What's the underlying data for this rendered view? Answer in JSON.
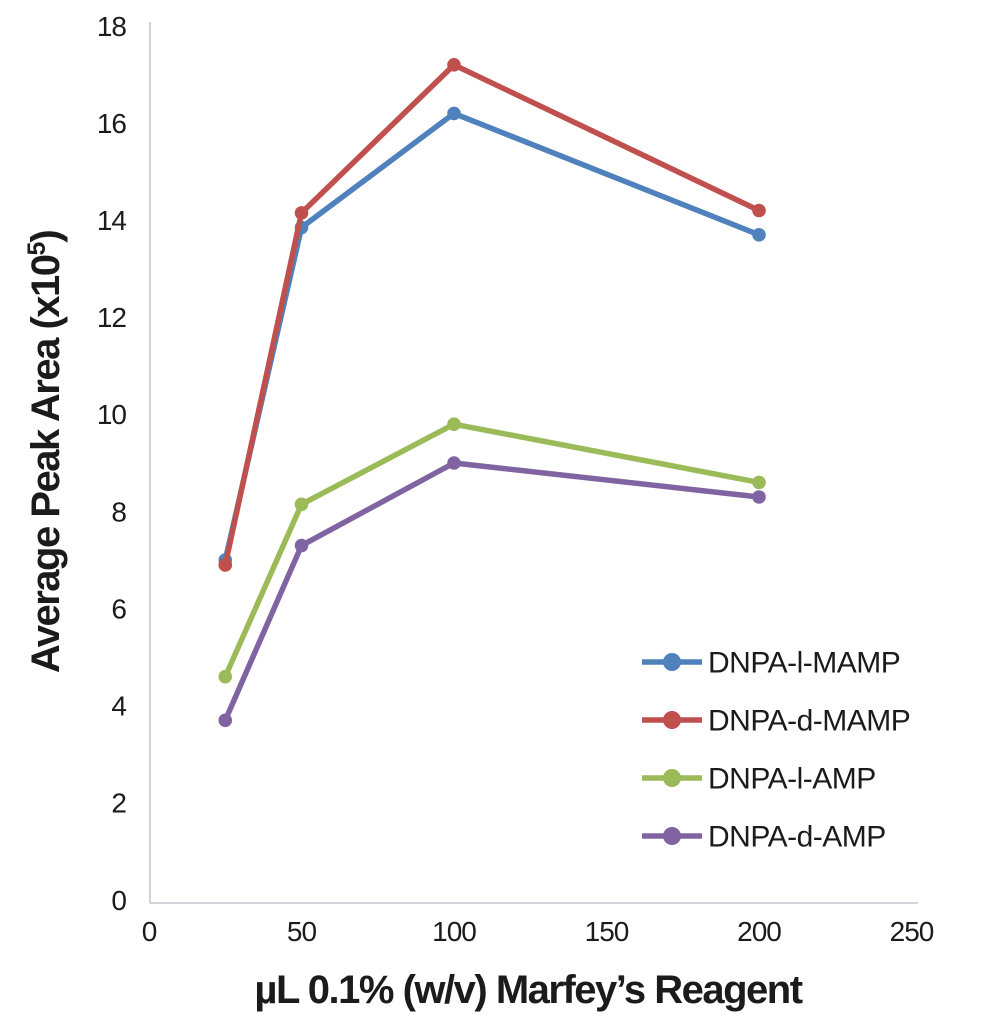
{
  "chart_data": {
    "type": "line",
    "x_values": [
      25,
      50,
      100,
      200
    ],
    "series": [
      {
        "name": "DNPA-l-MAMP",
        "color": "#4f81bd",
        "values": [
          7.0,
          13.85,
          16.2,
          13.7
        ]
      },
      {
        "name": "DNPA-d-MAMP",
        "color": "#c0504d",
        "values": [
          6.9,
          14.15,
          17.2,
          14.2
        ]
      },
      {
        "name": "DNPA-l-AMP",
        "color": "#9bbb59",
        "values": [
          4.6,
          8.15,
          9.8,
          8.6
        ]
      },
      {
        "name": "DNPA-d-AMP",
        "color": "#8064a2",
        "values": [
          3.7,
          7.3,
          9.0,
          8.3
        ]
      }
    ],
    "xlabel": "µL 0.1% (w/v) Marfey’s Reagent",
    "ylabel_parts": {
      "prefix": "Average Peak Area (x10",
      "sup": "5",
      "suffix": ")"
    },
    "xlim": [
      0,
      250
    ],
    "ylim": [
      0,
      18
    ],
    "xticks": [
      0,
      50,
      100,
      150,
      200,
      250
    ],
    "yticks": [
      0,
      2,
      4,
      6,
      8,
      10,
      12,
      14,
      16,
      18
    ],
    "grid": false,
    "legend_position": "inside-bottom-right",
    "marker": "circle",
    "colors": {
      "text": "#1b1b1b",
      "axis_line": "#c5c6cf",
      "background": "#ffffff"
    }
  }
}
